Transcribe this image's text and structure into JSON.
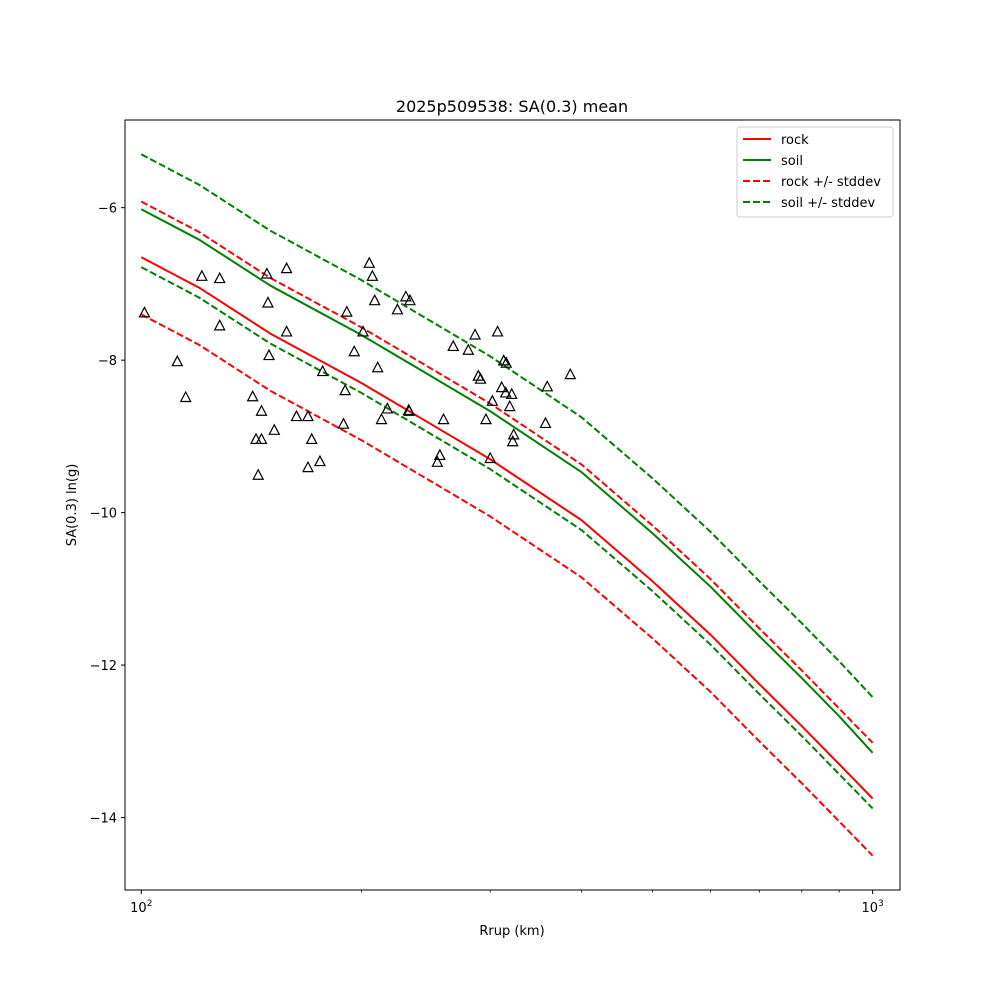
{
  "chart_data": {
    "type": "line",
    "title": "2025p509538: SA(0.3) mean",
    "xlabel": "Rrup (km)",
    "ylabel": "SA(0.3) ln(g)",
    "xscale": "log",
    "xlim": [
      95,
      1090
    ],
    "ylim": [
      -14.95,
      -4.85
    ],
    "x_ticks": [
      {
        "value": 100,
        "base": "10",
        "exp": "2"
      },
      {
        "value": 1000,
        "base": "10",
        "exp": "3"
      }
    ],
    "y_ticks": [
      {
        "value": -6,
        "label": "−6"
      },
      {
        "value": -8,
        "label": "−8"
      },
      {
        "value": -10,
        "label": "−10"
      },
      {
        "value": -12,
        "label": "−12"
      },
      {
        "value": -14,
        "label": "−14"
      }
    ],
    "legend_position": "top-right",
    "grid": false,
    "series": [
      {
        "name": "rock",
        "color": "#ff0000",
        "dash": "solid",
        "x": [
          100,
          120,
          150,
          200,
          250,
          300,
          400,
          500,
          600,
          700,
          800,
          900,
          1000
        ],
        "y": [
          -6.65,
          -7.05,
          -7.65,
          -8.3,
          -8.85,
          -9.3,
          -10.1,
          -10.9,
          -11.6,
          -12.25,
          -12.8,
          -13.3,
          -13.75
        ]
      },
      {
        "name": "soil",
        "color": "#008000",
        "dash": "solid",
        "x": [
          100,
          120,
          150,
          200,
          250,
          300,
          400,
          500,
          600,
          700,
          800,
          900,
          1000
        ],
        "y": [
          -6.02,
          -6.42,
          -7.02,
          -7.67,
          -8.22,
          -8.67,
          -9.47,
          -10.27,
          -10.97,
          -11.62,
          -12.17,
          -12.67,
          -13.15
        ]
      },
      {
        "name": "rock +/- stddev",
        "color": "#ff0000",
        "dash": "dashed",
        "x": [
          100,
          120,
          150,
          200,
          250,
          300,
          400,
          500,
          600,
          700,
          800,
          900,
          1000
        ],
        "y": [
          -5.92,
          -6.32,
          -6.92,
          -7.57,
          -8.12,
          -8.57,
          -9.37,
          -10.17,
          -10.87,
          -11.52,
          -12.07,
          -12.57,
          -13.02
        ]
      },
      {
        "color": "#ff0000",
        "dash": "dashed",
        "x": [
          100,
          120,
          150,
          200,
          250,
          300,
          400,
          500,
          600,
          700,
          800,
          900,
          1000
        ],
        "y": [
          -7.4,
          -7.8,
          -8.4,
          -9.05,
          -9.6,
          -10.05,
          -10.85,
          -11.65,
          -12.35,
          -13.0,
          -13.55,
          -14.05,
          -14.5
        ]
      },
      {
        "name": "soil +/- stddev",
        "color": "#008000",
        "dash": "dashed",
        "x": [
          100,
          120,
          150,
          200,
          250,
          300,
          400,
          500,
          600,
          700,
          800,
          900,
          1000
        ],
        "y": [
          -5.3,
          -5.7,
          -6.3,
          -6.95,
          -7.5,
          -7.95,
          -8.75,
          -9.55,
          -10.25,
          -10.9,
          -11.45,
          -11.95,
          -12.42
        ]
      },
      {
        "color": "#008000",
        "dash": "dashed",
        "x": [
          100,
          120,
          150,
          200,
          250,
          300,
          400,
          500,
          600,
          700,
          800,
          900,
          1000
        ],
        "y": [
          -6.78,
          -7.18,
          -7.78,
          -8.43,
          -8.98,
          -9.43,
          -10.23,
          -11.03,
          -11.73,
          -12.38,
          -12.93,
          -13.43,
          -13.88
        ]
      }
    ],
    "observations": {
      "marker": "open-triangle",
      "color": "#000000",
      "x": [
        101,
        112,
        115,
        121,
        128,
        128,
        142,
        143.5,
        144.5,
        146,
        146,
        148.5,
        149,
        149.5,
        152,
        158,
        158,
        163,
        169,
        169,
        171,
        175.5,
        177,
        189,
        190,
        191,
        195.5,
        201,
        205,
        207,
        208.5,
        210.5,
        213,
        217,
        224,
        230,
        232,
        232.5,
        233,
        254,
        256,
        259,
        267,
        280,
        286,
        289,
        291,
        296,
        300,
        302,
        307,
        311,
        313,
        315,
        315.5,
        319,
        321,
        322,
        323,
        357,
        359,
        386
      ],
      "y": [
        -7.38,
        -8.02,
        -8.49,
        -6.9,
        -6.93,
        -7.55,
        -8.48,
        -9.04,
        -9.51,
        -8.67,
        -9.04,
        -6.87,
        -7.25,
        -7.94,
        -8.92,
        -7.63,
        -6.8,
        -8.74,
        -8.74,
        -9.41,
        -9.04,
        -9.33,
        -8.15,
        -8.84,
        -8.4,
        -7.37,
        -7.89,
        -7.63,
        -6.73,
        -6.9,
        -7.22,
        -8.1,
        -8.78,
        -8.64,
        -7.34,
        -7.17,
        -8.66,
        -8.67,
        -7.22,
        -9.34,
        -9.25,
        -8.78,
        -7.82,
        -7.87,
        -7.67,
        -8.21,
        -8.25,
        -8.78,
        -9.29,
        -8.54,
        -7.63,
        -8.36,
        -8.01,
        -8.43,
        -8.04,
        -8.61,
        -8.45,
        -9.07,
        -8.98,
        -8.83,
        -8.35,
        -8.19
      ]
    }
  }
}
